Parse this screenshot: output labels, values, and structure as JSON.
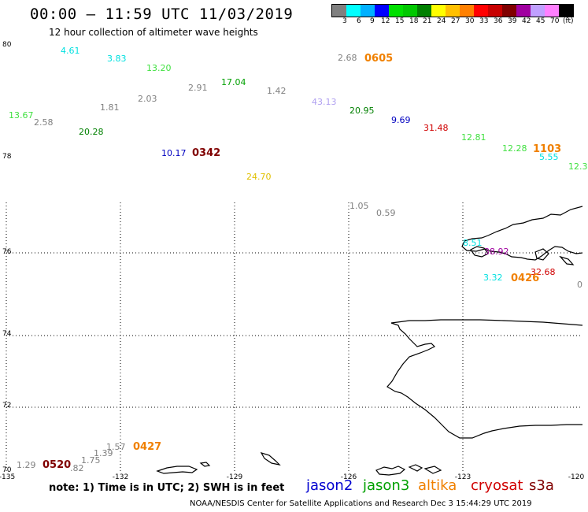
{
  "header": {
    "title": "00:00 – 11:59 UTC 11/03/2019",
    "subtitle": "12 hour collection of altimeter wave heights"
  },
  "scale": {
    "colors": [
      "#808080",
      "#00ffff",
      "#00b0ff",
      "#0000ff",
      "#00e000",
      "#00c800",
      "#008000",
      "#ffff00",
      "#ffc000",
      "#ff8000",
      "#ff0000",
      "#c80000",
      "#800000",
      "#a000a0",
      "#c0a0ff",
      "#ff80ff",
      "#000000"
    ],
    "labels": [
      "3",
      "6",
      "9",
      "12",
      "15",
      "18",
      "21",
      "24",
      "27",
      "30",
      "33",
      "36",
      "39",
      "42",
      "45",
      "70",
      "(ft)"
    ]
  },
  "axes": {
    "lat_labels": [
      "80",
      "78",
      "76",
      "74",
      "72",
      "70"
    ],
    "lon_labels": [
      "-135",
      "-132",
      "-129",
      "-126",
      "-123",
      "-120"
    ]
  },
  "swh_values": [
    {
      "text": "4.61",
      "color": "#00e0e0"
    },
    {
      "text": "3.83",
      "color": "#00e0e0"
    },
    {
      "text": "13.20",
      "color": "#40e040"
    },
    {
      "text": "2.68",
      "color": "#808080"
    },
    {
      "text": "17.04",
      "color": "#00a000"
    },
    {
      "text": "2.91",
      "color": "#808080"
    },
    {
      "text": "1.42",
      "color": "#808080"
    },
    {
      "text": "1.81",
      "color": "#808080"
    },
    {
      "text": "2.03",
      "color": "#808080"
    },
    {
      "text": "43.13",
      "color": "#b0a0f0"
    },
    {
      "text": "20.95",
      "color": "#008000"
    },
    {
      "text": "13.67",
      "color": "#40e040"
    },
    {
      "text": "2.58",
      "color": "#808080"
    },
    {
      "text": "9.69",
      "color": "#0000c0"
    },
    {
      "text": "31.48",
      "color": "#d00000"
    },
    {
      "text": "20.28",
      "color": "#008000"
    },
    {
      "text": "12.81",
      "color": "#40e040"
    },
    {
      "text": "12.28",
      "color": "#40e040"
    },
    {
      "text": "5.55",
      "color": "#00e0e0"
    },
    {
      "text": "10.17",
      "color": "#0000c0"
    },
    {
      "text": "12.3",
      "color": "#40e040"
    },
    {
      "text": "24.70",
      "color": "#e0c000"
    },
    {
      "text": "1.05",
      "color": "#808080"
    },
    {
      "text": "0.59",
      "color": "#808080"
    },
    {
      "text": "8.51",
      "color": "#00e0e0"
    },
    {
      "text": "38.92",
      "color": "#a000a0"
    },
    {
      "text": "32.68",
      "color": "#d00000"
    },
    {
      "text": "3.32",
      "color": "#00e0e0"
    },
    {
      "text": "0",
      "color": "#808080"
    },
    {
      "text": "1.57",
      "color": "#808080"
    },
    {
      "text": "1.39",
      "color": "#808080"
    },
    {
      "text": "1.75",
      "color": "#808080"
    },
    {
      "text": "1.29",
      "color": "#808080"
    },
    {
      "text": ".82",
      "color": "#808080"
    }
  ],
  "time_labels": [
    {
      "text": "0605",
      "color": "#f08000"
    },
    {
      "text": "1103",
      "color": "#f08000"
    },
    {
      "text": "0342",
      "color": "#800000"
    },
    {
      "text": "0426",
      "color": "#f08000"
    },
    {
      "text": "0427",
      "color": "#f08000"
    },
    {
      "text": "0520",
      "color": "#800000"
    }
  ],
  "footer": {
    "note": "note:  1) Time is in UTC;  2) SWH is in feet",
    "legend": [
      {
        "name": "jason2",
        "color": "#0000d0"
      },
      {
        "name": "jason3",
        "color": "#00a000"
      },
      {
        "name": "altika",
        "color": "#f08000"
      },
      {
        "name": "cryosat",
        "color": "#d00000"
      },
      {
        "name": "s3a",
        "color": "#800000"
      }
    ],
    "credit": "NOAA/NESDIS Center for Satellite Applications and Research      Dec  3 15:44:29 UTC 2019"
  }
}
